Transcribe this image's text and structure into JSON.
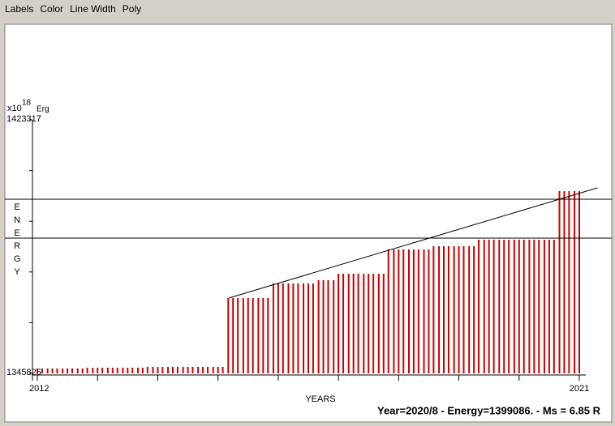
{
  "menu": [
    "Labels",
    "Color",
    "Line Width",
    "Poly"
  ],
  "status": "Year=2020/8 - Energy=1399086. - Ms = 6.85 R",
  "chart_data": {
    "type": "bar",
    "y_unit": "x10",
    "y_exponent": "18",
    "y_unit_name": "Erg",
    "y_label": "ENERGY",
    "x_label": "YEARS",
    "color": "#cc0000",
    "xlim": [
      2012,
      2021
    ],
    "xticks": [
      2012,
      2021
    ],
    "x_minor_ticks": [
      2013,
      2014,
      2015,
      2016,
      2017,
      2018,
      2019,
      2020
    ],
    "ylim": [
      1345825,
      1423317
    ],
    "yticks": [
      1345825,
      1423317
    ],
    "y_minor_ticks": [
      1361323.4,
      1376821.8,
      1392320.2,
      1407818.6
    ],
    "hlines": [
      1399059,
      1387174
    ],
    "trend_line": {
      "x": [
        2015.18,
        2021.3
      ],
      "y": [
        1368852,
        1402525
      ]
    },
    "x": [
      2012,
      2012.08,
      2012.17,
      2012.25,
      2012.33,
      2012.42,
      2012.5,
      2012.58,
      2012.67,
      2012.75,
      2012.83,
      2012.92,
      2013,
      2013.08,
      2013.17,
      2013.25,
      2013.33,
      2013.42,
      2013.5,
      2013.58,
      2013.67,
      2013.75,
      2013.83,
      2013.92,
      2014,
      2014.08,
      2014.17,
      2014.25,
      2014.33,
      2014.42,
      2014.5,
      2014.58,
      2014.67,
      2014.75,
      2014.83,
      2014.92,
      2015,
      2015.08,
      2015.17,
      2015.25,
      2015.33,
      2015.42,
      2015.5,
      2015.58,
      2015.67,
      2015.75,
      2015.83,
      2015.92,
      2016,
      2016.08,
      2016.17,
      2016.25,
      2016.33,
      2016.42,
      2016.5,
      2016.58,
      2016.67,
      2016.75,
      2016.83,
      2016.92,
      2017,
      2017.08,
      2017.17,
      2017.25,
      2017.33,
      2017.42,
      2017.5,
      2017.58,
      2017.67,
      2017.75,
      2017.83,
      2017.92,
      2018,
      2018.08,
      2018.17,
      2018.25,
      2018.33,
      2018.42,
      2018.5,
      2018.58,
      2018.67,
      2018.75,
      2018.83,
      2018.92,
      2019,
      2019.08,
      2019.17,
      2019.25,
      2019.33,
      2019.42,
      2019.5,
      2019.58,
      2019.67,
      2019.75,
      2019.83,
      2019.92,
      2020,
      2020.08,
      2020.17,
      2020.25,
      2020.33,
      2020.42,
      2020.5,
      2020.58,
      2020.67,
      2020.75,
      2020.83,
      2020.92,
      2021
    ],
    "values": [
      1347311,
      1347311,
      1347311,
      1347311,
      1347311,
      1347311,
      1347311,
      1347311,
      1347311,
      1347311,
      1347558,
      1347558,
      1347558,
      1347558,
      1347558,
      1347558,
      1347558,
      1347558,
      1347558,
      1347558,
      1347558,
      1347558,
      1347806,
      1347806,
      1347806,
      1347806,
      1347806,
      1347806,
      1347806,
      1347806,
      1347806,
      1347806,
      1347806,
      1347806,
      1347806,
      1347806,
      1347806,
      1347806,
      1368852,
      1368852,
      1368852,
      1368852,
      1368852,
      1368852,
      1368852,
      1368852,
      1368852,
      1373309,
      1373309,
      1373309,
      1373309,
      1373309,
      1373309,
      1373309,
      1373309,
      1373309,
      1374299,
      1374299,
      1374299,
      1374299,
      1376280,
      1376280,
      1376280,
      1376280,
      1376280,
      1376280,
      1376280,
      1376280,
      1376280,
      1376280,
      1383708,
      1383708,
      1383708,
      1383708,
      1383708,
      1383708,
      1383708,
      1383708,
      1383708,
      1384698,
      1384698,
      1384698,
      1384698,
      1384698,
      1384698,
      1384698,
      1384698,
      1384698,
      1386679,
      1386679,
      1386679,
      1386679,
      1386679,
      1386679,
      1386679,
      1386679,
      1386679,
      1386679,
      1386679,
      1386679,
      1386679,
      1386679,
      1386679,
      1386679,
      1401535,
      1401535,
      1401535,
      1401535,
      1401535
    ]
  }
}
